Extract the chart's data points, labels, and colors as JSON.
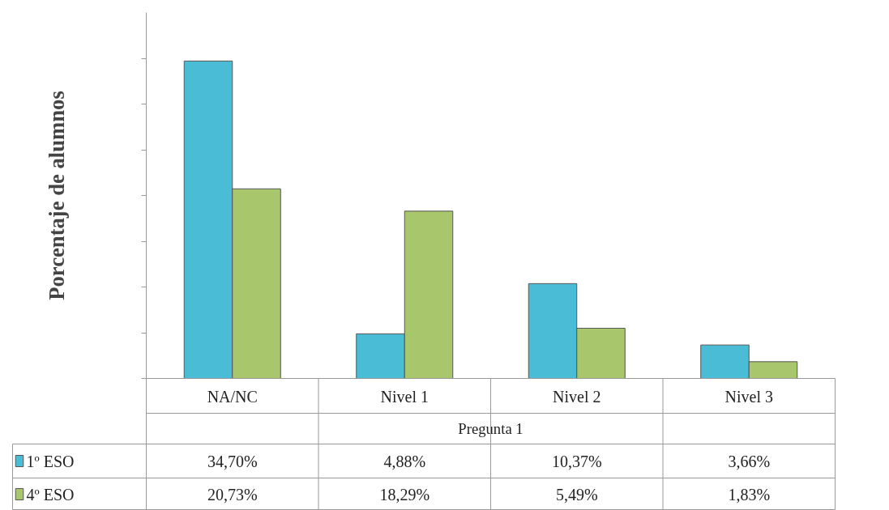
{
  "chart_data": {
    "type": "bar",
    "ylabel": "Porcentaje de alumnos",
    "xlabel": "Pregunta 1",
    "categories": [
      "NA/NC",
      "Nivel 1",
      "Nivel 2",
      "Nivel 3"
    ],
    "series": [
      {
        "name": "1º ESO",
        "color": "#4bbcd6",
        "values": [
          34.7,
          4.88,
          10.37,
          3.66
        ],
        "value_labels": [
          "34,70%",
          "4,88%",
          "10,37%",
          "3,66%"
        ]
      },
      {
        "name": "4º ESO",
        "color": "#a8c66c",
        "values": [
          20.73,
          18.29,
          5.49,
          1.83
        ],
        "value_labels": [
          "20,73%",
          "18,29%",
          "5,49%",
          "1,83%"
        ]
      }
    ],
    "ylim": [
      0,
      40
    ],
    "yticks": [
      {
        "value": 0,
        "label": null
      },
      {
        "value": 5,
        "label": null
      },
      {
        "value": 10,
        "label": null
      },
      {
        "value": 15,
        "label": null
      },
      {
        "value": 20,
        "label": null
      },
      {
        "value": 25,
        "label": null
      },
      {
        "value": 30,
        "label": null
      },
      {
        "value": 35,
        "label": null
      }
    ],
    "grid": false,
    "legend": "bottom"
  }
}
